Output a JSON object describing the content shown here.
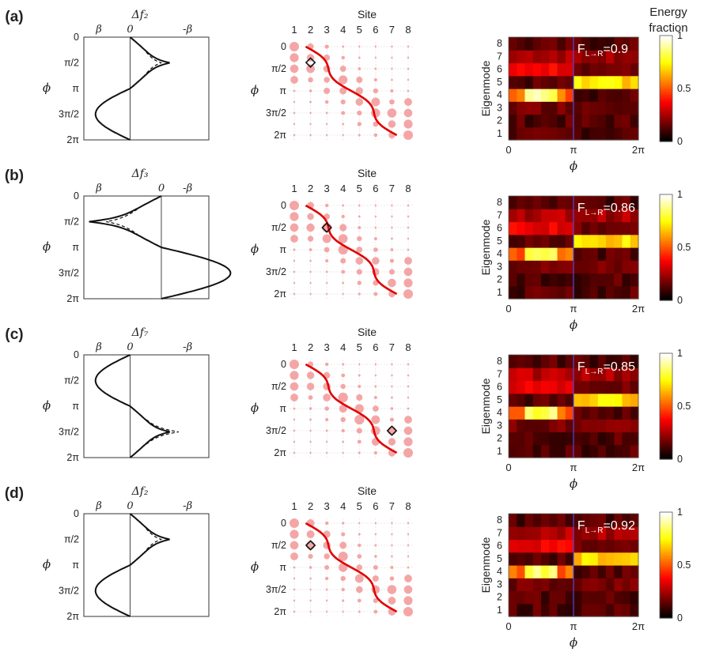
{
  "figure": {
    "colorbar_title": [
      "Energy",
      "fraction"
    ],
    "colors": {
      "line": "#111111",
      "path": "#e00000",
      "dot": "#f4a6a6",
      "grid": "#dddddd",
      "tick": "#4b4bdd"
    }
  },
  "rows": [
    {
      "label": "(a)",
      "left": {
        "title": "Δf₂",
        "xticks": [
          "β",
          "0",
          "-β"
        ],
        "sign": 1,
        "center": 0.25,
        "width": 0.55,
        "yticks": [
          "0",
          "π/2",
          "π",
          "3π/2",
          "2π"
        ],
        "ylabel": "ϕ"
      },
      "mid": {
        "title": "Site",
        "xticks": [
          "1",
          "2",
          "3",
          "4",
          "5",
          "6",
          "7",
          "8"
        ],
        "yticks": [
          "0",
          "π/2",
          "π",
          "3π/2",
          "2π"
        ],
        "ylabel": "ϕ",
        "marker": {
          "site": 2,
          "phase": 0.18
        }
      },
      "right": {
        "annotation": "F",
        "annotation_sub": "L→R",
        "annotation_value": "=0.9",
        "yticks": [
          "1",
          "2",
          "3",
          "4",
          "5",
          "6",
          "7",
          "8"
        ],
        "xticks": [
          "0",
          "π",
          "2π"
        ],
        "ylabel": "Eigenmode",
        "xlabel": "ϕ",
        "colorbar_ticks": [
          "0",
          "0.5",
          "1"
        ]
      }
    },
    {
      "label": "(b)",
      "left": {
        "title": "Δf₃",
        "xticks": [
          "β",
          "0",
          "-β"
        ],
        "sign": -1,
        "center": 0.25,
        "width": 0.55,
        "yticks": [
          "0",
          "π/2",
          "π",
          "3π/2",
          "2π"
        ],
        "ylabel": "ϕ"
      },
      "mid": {
        "title": "Site",
        "xticks": [
          "1",
          "2",
          "3",
          "4",
          "5",
          "6",
          "7",
          "8"
        ],
        "yticks": [
          "0",
          "π/2",
          "π",
          "3π/2",
          "2π"
        ],
        "ylabel": "ϕ",
        "marker": {
          "site": 3,
          "phase": 0.25
        }
      },
      "right": {
        "annotation": "F",
        "annotation_sub": "L→R",
        "annotation_value": "=0.86",
        "yticks": [
          "1",
          "2",
          "3",
          "4",
          "5",
          "6",
          "7",
          "8"
        ],
        "xticks": [
          "0",
          "π",
          "2π"
        ],
        "ylabel": "Eigenmode",
        "xlabel": "ϕ",
        "colorbar_ticks": [
          "0",
          "0.5",
          "1"
        ]
      }
    },
    {
      "label": "(c)",
      "left": {
        "title": "Δf₇",
        "xticks": [
          "β",
          "0",
          "-β"
        ],
        "sign": 1,
        "center": 0.75,
        "width": 0.55,
        "yticks": [
          "0",
          "π/2",
          "π",
          "3π/2",
          "2π"
        ],
        "ylabel": "ϕ"
      },
      "mid": {
        "title": "Site",
        "xticks": [
          "1",
          "2",
          "3",
          "4",
          "5",
          "6",
          "7",
          "8"
        ],
        "yticks": [
          "0",
          "π/2",
          "π",
          "3π/2",
          "2π"
        ],
        "ylabel": "ϕ",
        "marker": {
          "site": 7,
          "phase": 0.75
        }
      },
      "right": {
        "annotation": "F",
        "annotation_sub": "L→R",
        "annotation_value": "=0.85",
        "yticks": [
          "1",
          "2",
          "3",
          "4",
          "5",
          "6",
          "7",
          "8"
        ],
        "xticks": [
          "0",
          "π",
          "2π"
        ],
        "ylabel": "Eigenmode",
        "xlabel": "ϕ",
        "colorbar_ticks": [
          "0",
          "0.5",
          "1"
        ]
      }
    },
    {
      "label": "(d)",
      "left": {
        "title": "Δf₂",
        "xticks": [
          "β",
          "0",
          "-β"
        ],
        "sign": 1,
        "center": 0.25,
        "width": 0.75,
        "yticks": [
          "0",
          "π/2",
          "π",
          "3π/2",
          "2π"
        ],
        "ylabel": "ϕ"
      },
      "mid": {
        "title": "Site",
        "xticks": [
          "1",
          "2",
          "3",
          "4",
          "5",
          "6",
          "7",
          "8"
        ],
        "yticks": [
          "0",
          "π/2",
          "π",
          "3π/2",
          "2π"
        ],
        "ylabel": "ϕ",
        "marker": {
          "site": 2,
          "phase": 0.25
        }
      },
      "right": {
        "annotation": "F",
        "annotation_sub": "L→R",
        "annotation_value": "=0.92",
        "yticks": [
          "1",
          "2",
          "3",
          "4",
          "5",
          "6",
          "7",
          "8"
        ],
        "xticks": [
          "0",
          "π",
          "2π"
        ],
        "ylabel": "Eigenmode",
        "xlabel": "ϕ",
        "colorbar_ticks": [
          "0",
          "0.5",
          "1"
        ]
      }
    }
  ],
  "chart_data": [
    {
      "type": "line",
      "title": "Δf₂ (a)",
      "xlabel": "",
      "ylabel": "ϕ",
      "xlim": [
        "β",
        "-β"
      ],
      "ylim": [
        0,
        6.283
      ],
      "series": [
        {
          "name": "solid",
          "style": "solid"
        },
        {
          "name": "dashed",
          "style": "dashed"
        }
      ]
    },
    {
      "type": "scatter",
      "title": "Site",
      "xlabel": "Site",
      "ylabel": "ϕ",
      "x": [
        1,
        2,
        3,
        4,
        5,
        6,
        7,
        8
      ],
      "ylim": [
        0,
        6.283
      ]
    },
    {
      "type": "heatmap",
      "title": "Eigenmode energy fraction",
      "xlabel": "ϕ",
      "ylabel": "Eigenmode",
      "rows": [
        1,
        2,
        3,
        4,
        5,
        6,
        7,
        8
      ],
      "xlim": [
        0,
        6.283
      ],
      "zlim": [
        0,
        1
      ],
      "F_values": [
        0.9,
        0.86,
        0.85,
        0.92
      ]
    }
  ]
}
